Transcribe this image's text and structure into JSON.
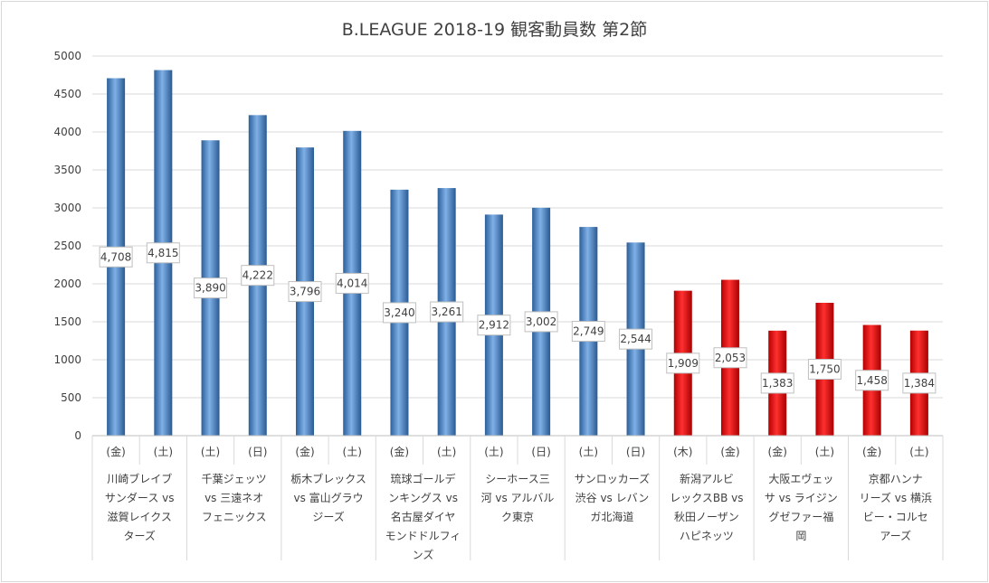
{
  "chart_data": {
    "type": "bar",
    "title": "B.LEAGUE 2018-19 観客動員数 第2節",
    "xlabel": "",
    "ylabel": "",
    "ylim": [
      0,
      5000
    ],
    "yticks": [
      0,
      500,
      1000,
      1500,
      2000,
      2500,
      3000,
      3500,
      4000,
      4500,
      5000
    ],
    "grid": true,
    "legend": "none",
    "colors": {
      "default": "#4f86c6",
      "highlight": "#ff0000"
    },
    "categories": [
      {
        "day": "(金)",
        "match": "川崎ブレイブサンダース vs 滋賀レイクスターズ"
      },
      {
        "day": "(土)",
        "match": "川崎ブレイブサンダース vs 滋賀レイクスターズ"
      },
      {
        "day": "(土)",
        "match": "千葉ジェッツ vs 三遠ネオフェニックス"
      },
      {
        "day": "(日)",
        "match": "千葉ジェッツ vs 三遠ネオフェニックス"
      },
      {
        "day": "(金)",
        "match": "栃木ブレックス vs 富山グラウジーズ"
      },
      {
        "day": "(土)",
        "match": "栃木ブレックス vs 富山グラウジーズ"
      },
      {
        "day": "(金)",
        "match": "琉球ゴールデンキングス vs 名古屋ダイヤモンドドルフィンズ"
      },
      {
        "day": "(土)",
        "match": "琉球ゴールデンキングス vs 名古屋ダイヤモンドドルフィンズ"
      },
      {
        "day": "(土)",
        "match": "シーホース三河 vs アルバルク東京"
      },
      {
        "day": "(日)",
        "match": "シーホース三河 vs アルバルク東京"
      },
      {
        "day": "(土)",
        "match": "サンロッカーズ渋谷 vs レバンガ北海道"
      },
      {
        "day": "(日)",
        "match": "サンロッカーズ渋谷 vs レバンガ北海道"
      },
      {
        "day": "(木)",
        "match": "新潟アルビレックスBB vs 秋田ノーザンハピネッツ"
      },
      {
        "day": "(金)",
        "match": "新潟アルビレックスBB vs 秋田ノーザンハピネッツ"
      },
      {
        "day": "(金)",
        "match": "大阪エヴェッサ vs ライジングゼファー福岡"
      },
      {
        "day": "(土)",
        "match": "大阪エヴェッサ vs ライジングゼファー福岡"
      },
      {
        "day": "(金)",
        "match": "京都ハンナリーズ vs 横浜ビー・コルセアーズ"
      },
      {
        "day": "(土)",
        "match": "京都ハンナリーズ vs 横浜ビー・コルセアーズ"
      }
    ],
    "groups": [
      {
        "label_lines": [
          "川崎ブレイブ",
          "サンダース vs",
          "滋賀レイクス",
          "ターズ"
        ]
      },
      {
        "label_lines": [
          "千葉ジェッツ",
          "vs 三遠ネオ",
          "フェニックス"
        ]
      },
      {
        "label_lines": [
          "栃木ブレックス",
          "vs 富山グラウ",
          "ジーズ"
        ]
      },
      {
        "label_lines": [
          "琉球ゴールデ",
          "ンキングス vs",
          "名古屋ダイヤ",
          "モンドドルフィ",
          "ンズ"
        ]
      },
      {
        "label_lines": [
          "シーホース三",
          "河 vs アルバル",
          "ク東京"
        ]
      },
      {
        "label_lines": [
          "サンロッカーズ",
          "渋谷 vs レバン",
          "ガ北海道"
        ]
      },
      {
        "label_lines": [
          "新潟アルビ",
          "レックスBB vs",
          "秋田ノーザン",
          "ハピネッツ"
        ]
      },
      {
        "label_lines": [
          "大阪エヴェッ",
          "サ vs ライジン",
          "グゼファー福",
          "岡"
        ]
      },
      {
        "label_lines": [
          "京都ハンナ",
          "リーズ vs 横浜",
          "ビー・コルセ",
          "アーズ"
        ]
      }
    ],
    "values": [
      4708,
      4815,
      3890,
      4222,
      3796,
      4014,
      3240,
      3261,
      2912,
      3002,
      2749,
      2544,
      1909,
      2053,
      1383,
      1750,
      1458,
      1384
    ],
    "value_labels": [
      "4,708",
      "4,815",
      "3,890",
      "4,222",
      "3,796",
      "4,014",
      "3,240",
      "3,261",
      "2,912",
      "3,002",
      "2,749",
      "2,544",
      "1,909",
      "2,053",
      "1,383",
      "1,750",
      "1,458",
      "1,384"
    ],
    "highlight": [
      false,
      false,
      false,
      false,
      false,
      false,
      false,
      false,
      false,
      false,
      false,
      false,
      true,
      true,
      true,
      true,
      true,
      true
    ]
  }
}
